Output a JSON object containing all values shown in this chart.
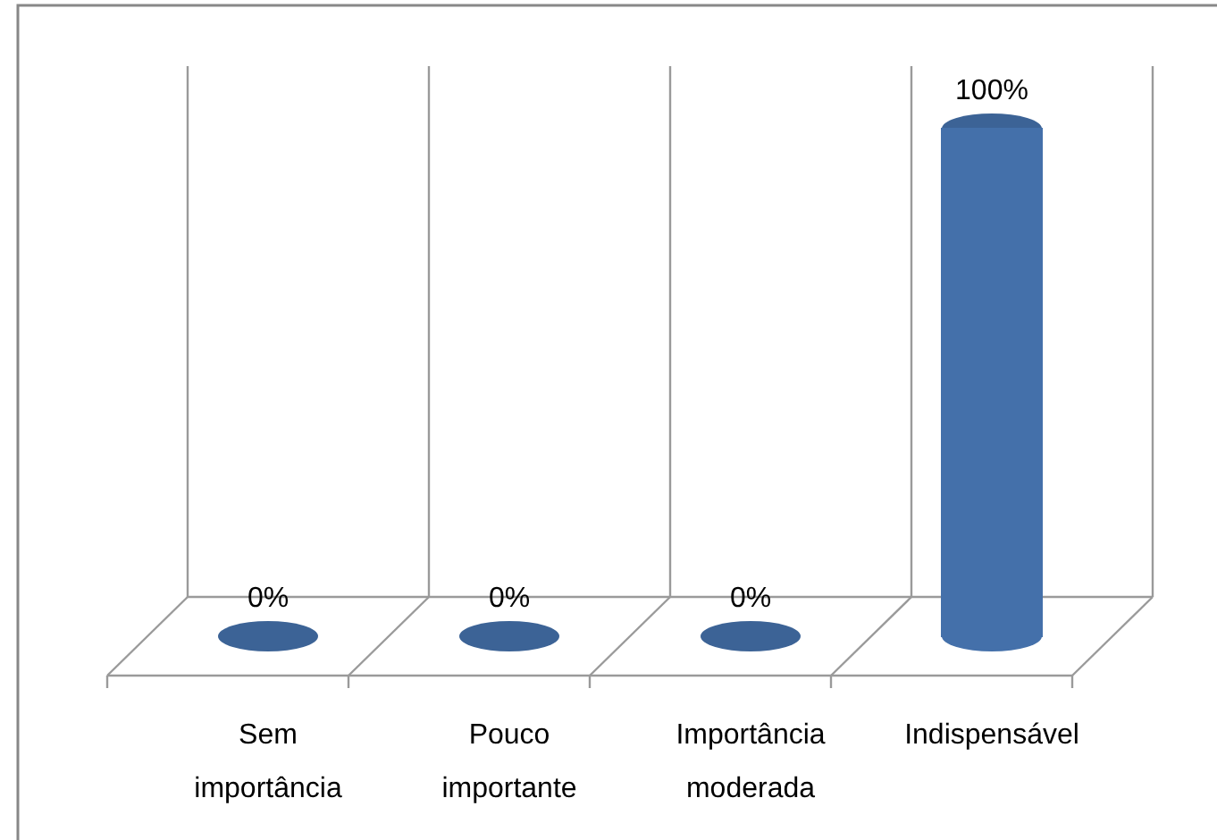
{
  "chart_data": {
    "type": "bar",
    "categories": [
      "Sem importância",
      "Pouco importante",
      "Importância moderada",
      "Indispensável"
    ],
    "values": [
      0,
      0,
      0,
      100
    ],
    "value_labels": [
      "0%",
      "0%",
      "0%",
      "100%"
    ],
    "color": "#4470aa",
    "grid": "x"
  }
}
